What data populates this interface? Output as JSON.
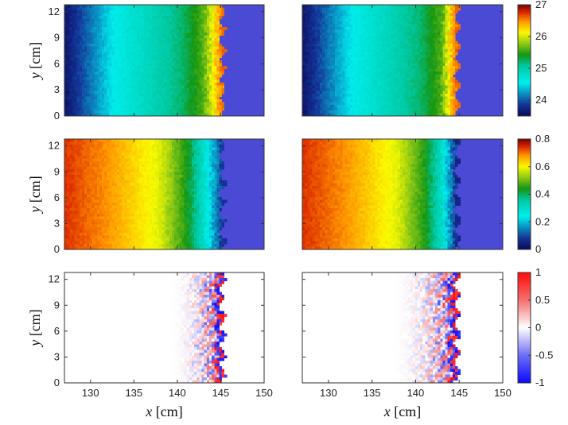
{
  "chart_data": {
    "type": "heatmap",
    "layout": {
      "rows": 3,
      "cols": 2
    },
    "xlabel_var": "x",
    "xlabel_unit": "[cm]",
    "ylabel_var": "y",
    "ylabel_unit": "[cm]",
    "x_range": [
      127,
      150
    ],
    "y_range": [
      0,
      12.8
    ],
    "x_ticks": [
      "130",
      "135",
      "140",
      "145",
      "150"
    ],
    "y_ticks": [
      "0",
      "3",
      "6",
      "9",
      "12"
    ],
    "front_x": [
      145.2,
      144.8
    ],
    "rows": [
      {
        "field": "row1",
        "colormap": "jet-like (navy-cyan-green-yellow-red)",
        "clim": [
          23.5,
          27
        ],
        "colorbar_ticks": [
          "24",
          "25",
          "26",
          "27"
        ],
        "background_color": "#4a4ad4",
        "profile_left": [
          [
            127,
            23.6
          ],
          [
            133,
            24.6
          ],
          [
            137,
            24.9
          ],
          [
            140.5,
            25.2
          ],
          [
            143,
            25.6
          ],
          [
            144.5,
            26.3
          ],
          [
            145.2,
            26.6
          ]
        ],
        "profile_right": [
          [
            127,
            23.6
          ],
          [
            133,
            24.6
          ],
          [
            137,
            24.9
          ],
          [
            140.5,
            25.2
          ],
          [
            143,
            25.6
          ],
          [
            144,
            26.3
          ],
          [
            144.8,
            26.6
          ]
        ]
      },
      {
        "field": "row2",
        "colormap": "jet-like (navy-cyan-green-yellow-red)",
        "clim": [
          0,
          0.8
        ],
        "colorbar_ticks": [
          "0",
          "0.2",
          "0.4",
          "0.6",
          "0.8"
        ],
        "background_color": "#4a4ad4",
        "profile_left": [
          [
            127,
            0.74
          ],
          [
            132,
            0.68
          ],
          [
            138,
            0.58
          ],
          [
            141,
            0.45
          ],
          [
            143,
            0.3
          ],
          [
            144,
            0.2
          ],
          [
            145.2,
            0.08
          ]
        ],
        "profile_right": [
          [
            127,
            0.74
          ],
          [
            132,
            0.68
          ],
          [
            138,
            0.58
          ],
          [
            141,
            0.45
          ],
          [
            143,
            0.3
          ],
          [
            144,
            0.15
          ],
          [
            144.8,
            0.05
          ]
        ]
      },
      {
        "field": "row3",
        "colormap": "diverging blue-white-red",
        "clim": [
          -1,
          1
        ],
        "colorbar_ticks": [
          "1",
          "0.5",
          "0",
          "-0.5",
          "-1"
        ],
        "background_color": "#ffffff",
        "active_band_left": [
          139,
          145.2
        ],
        "active_band_right": [
          137,
          144.8
        ]
      }
    ]
  }
}
